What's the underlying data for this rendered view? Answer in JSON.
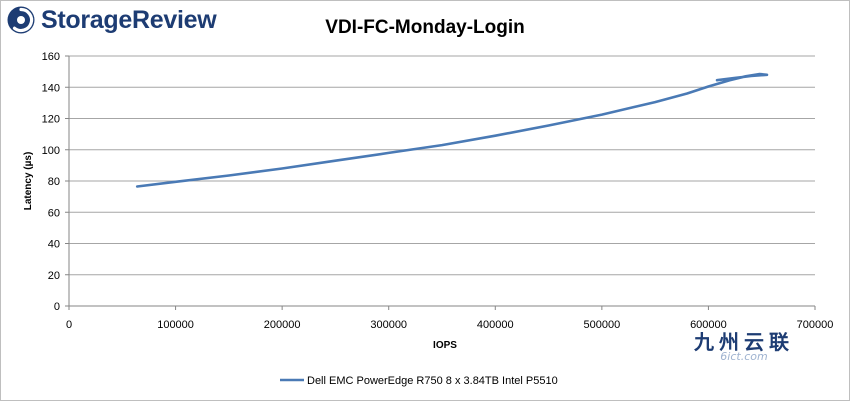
{
  "brand": {
    "logo_text": "StorageReview"
  },
  "watermark": {
    "cn": "九州云联",
    "en": "6ict.com"
  },
  "colors": {
    "series": "#4a7ab5",
    "grid": "#a6a6a6",
    "axis": "#868686",
    "logo": "#1d3c73"
  },
  "chart_data": {
    "type": "line",
    "title": "VDI-FC-Monday-Login",
    "xlabel": "IOPS",
    "ylabel": "Latency (µs)",
    "xlim": [
      0,
      700000
    ],
    "ylim": [
      0,
      160
    ],
    "xticks": [
      0,
      100000,
      200000,
      300000,
      400000,
      500000,
      600000,
      700000
    ],
    "yticks": [
      0,
      20,
      40,
      60,
      80,
      100,
      120,
      140,
      160
    ],
    "grid": "horizontal",
    "legend_position": "bottom",
    "series": [
      {
        "name": "Dell EMC PowerEdge R750 8 x 3.84TB Intel P5510",
        "color": "#4a7ab5",
        "x": [
          64000,
          100000,
          150000,
          200000,
          250000,
          300000,
          350000,
          400000,
          450000,
          500000,
          550000,
          580000,
          600000,
          620000,
          635000,
          648000,
          655000,
          640000,
          625000,
          608000
        ],
        "y": [
          76.5,
          79.5,
          83.5,
          88,
          93,
          98,
          103,
          109,
          115.5,
          122.5,
          130.5,
          136,
          140.5,
          144.5,
          147,
          148.5,
          148,
          147.2,
          146,
          144.5
        ]
      }
    ]
  }
}
